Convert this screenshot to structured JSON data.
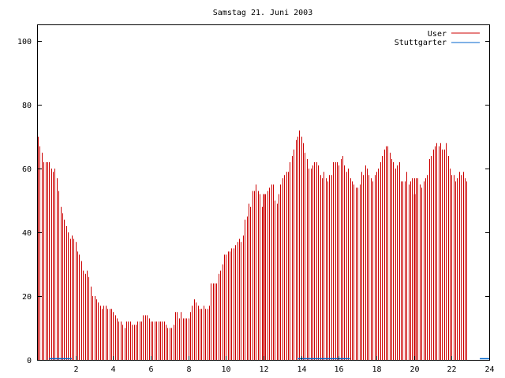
{
  "chart_data": {
    "type": "bar",
    "title": "Samstag 21. Juni 2003",
    "xlim": [
      0,
      24
    ],
    "ylim": [
      0,
      105
    ],
    "x_ticks": [
      "2",
      "4",
      "6",
      "8",
      "10",
      "12",
      "14",
      "16",
      "18",
      "20",
      "22",
      "24"
    ],
    "y_ticks": [
      "0",
      "20",
      "40",
      "60",
      "80",
      "100"
    ],
    "grid": false,
    "legend_position": "top-right",
    "series": [
      {
        "name": "User",
        "color": "#cc0000",
        "bin_width": 0.1,
        "values": [
          70,
          67,
          65,
          62,
          62,
          62,
          62,
          60,
          59,
          60,
          57,
          53,
          48,
          46,
          44,
          42,
          40,
          38,
          39,
          38,
          37,
          34,
          33,
          31,
          28,
          27,
          28,
          26,
          23,
          20,
          20,
          19,
          18,
          17,
          16,
          17,
          17,
          16,
          16,
          16,
          15,
          14,
          13,
          12,
          12,
          11,
          10,
          12,
          12,
          12,
          11,
          11,
          11,
          12,
          12,
          12,
          14,
          14,
          14,
          13,
          12,
          12,
          12,
          12,
          12,
          12,
          12,
          12,
          11,
          10,
          10,
          10,
          11,
          15,
          15,
          13,
          15,
          13,
          13,
          13,
          13,
          15,
          17,
          19,
          18,
          17,
          16,
          16,
          17,
          16,
          16,
          17,
          24,
          24,
          24,
          24,
          27,
          28,
          30,
          33,
          33,
          34,
          34,
          35,
          35,
          36,
          37,
          38,
          37,
          39,
          44,
          45,
          49,
          48,
          53,
          53,
          55,
          53,
          52,
          48,
          49,
          52,
          53,
          54,
          55,
          55,
          50,
          49,
          52,
          55,
          57,
          58,
          59,
          59,
          62,
          64,
          66,
          69,
          70,
          72,
          70,
          68,
          65,
          63,
          60,
          60,
          61,
          62,
          62,
          61,
          58,
          57,
          59,
          57,
          56,
          58,
          58,
          62,
          62,
          62,
          61,
          63,
          64,
          61,
          59,
          60,
          57,
          56,
          55,
          54,
          54,
          55,
          59,
          58,
          61,
          60,
          58,
          57,
          56,
          58,
          59,
          60,
          62,
          64,
          66,
          67,
          67,
          65,
          63,
          62,
          60,
          61,
          62,
          56,
          56,
          56,
          59,
          55,
          56,
          57,
          57,
          57,
          57,
          55,
          54,
          56,
          57,
          58,
          63,
          64,
          66,
          67,
          68,
          67,
          68,
          66,
          66,
          68,
          64,
          60,
          58,
          58,
          56,
          57,
          59,
          58,
          59,
          57,
          56
        ]
      },
      {
        "name": "Stuttgarter",
        "color": "#0066cc",
        "values": []
      }
    ],
    "markers": {
      "blue_ranges": [
        [
          0.6,
          1.8
        ],
        [
          13.8,
          16.6
        ],
        [
          23.5,
          24
        ]
      ],
      "red_hour_lines": [
        12,
        20
      ]
    }
  }
}
